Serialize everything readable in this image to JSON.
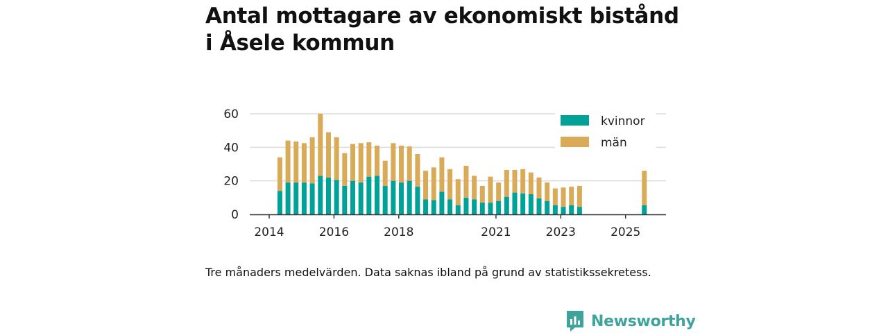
{
  "title_lines": [
    "Antal mottagare av ekonomiskt bistånd",
    "i Åsele kommun"
  ],
  "caption": "Tre månaders medelvärden. Data saknas ibland på grund av statistikssekretess.",
  "brand": {
    "name": "Newsworthy",
    "color": "#3fa39c"
  },
  "chart_data": {
    "type": "bar",
    "stacked": true,
    "x_axis": {
      "min": 2014,
      "max": 2026,
      "ticks": [
        2014,
        2016,
        2018,
        2021,
        2023,
        2025
      ],
      "tick_labels": [
        "2014",
        "2016",
        "2018",
        "2021",
        "2023",
        "2025"
      ]
    },
    "y_axis": {
      "min": 0,
      "max": 60,
      "ticks": [
        0,
        20,
        40,
        60
      ],
      "tick_labels": [
        "0",
        "20",
        "40",
        "60"
      ]
    },
    "grid": true,
    "legend": {
      "position": "top-right"
    },
    "x": [
      2014.33,
      2014.58,
      2014.83,
      2015.08,
      2015.33,
      2015.58,
      2015.83,
      2016.08,
      2016.33,
      2016.58,
      2016.83,
      2017.08,
      2017.33,
      2017.58,
      2017.83,
      2018.08,
      2018.33,
      2018.58,
      2018.83,
      2019.08,
      2019.33,
      2019.58,
      2019.83,
      2020.08,
      2020.33,
      2020.58,
      2020.83,
      2021.08,
      2021.33,
      2021.58,
      2021.83,
      2022.08,
      2022.33,
      2022.58,
      2022.83,
      2023.08,
      2023.33,
      2023.58,
      2025.58
    ],
    "series": [
      {
        "name": "kvinnor",
        "color": "#00a196",
        "values": [
          14,
          19,
          19,
          19,
          18.5,
          23,
          22,
          20.5,
          17,
          20,
          19,
          22.5,
          23,
          17,
          20,
          19,
          20,
          16.5,
          9,
          8.5,
          13.5,
          9,
          5.5,
          10,
          9,
          7,
          7,
          8,
          10.5,
          13,
          12.5,
          12,
          9.5,
          8,
          5.5,
          4.5,
          5.5,
          4.5,
          5.5
        ]
      },
      {
        "name": "män",
        "color": "#d9aa58",
        "values": [
          20,
          25,
          24.5,
          23.5,
          27.5,
          37,
          27,
          25.5,
          19.5,
          22,
          23.5,
          20.5,
          18,
          15,
          22.5,
          22,
          20.5,
          19.5,
          17,
          19.5,
          20.5,
          18,
          15.5,
          19,
          14,
          10,
          15.5,
          11,
          16,
          13.5,
          14.5,
          13,
          12.5,
          11,
          10,
          11.5,
          11,
          12.5,
          20.5
        ]
      }
    ]
  }
}
